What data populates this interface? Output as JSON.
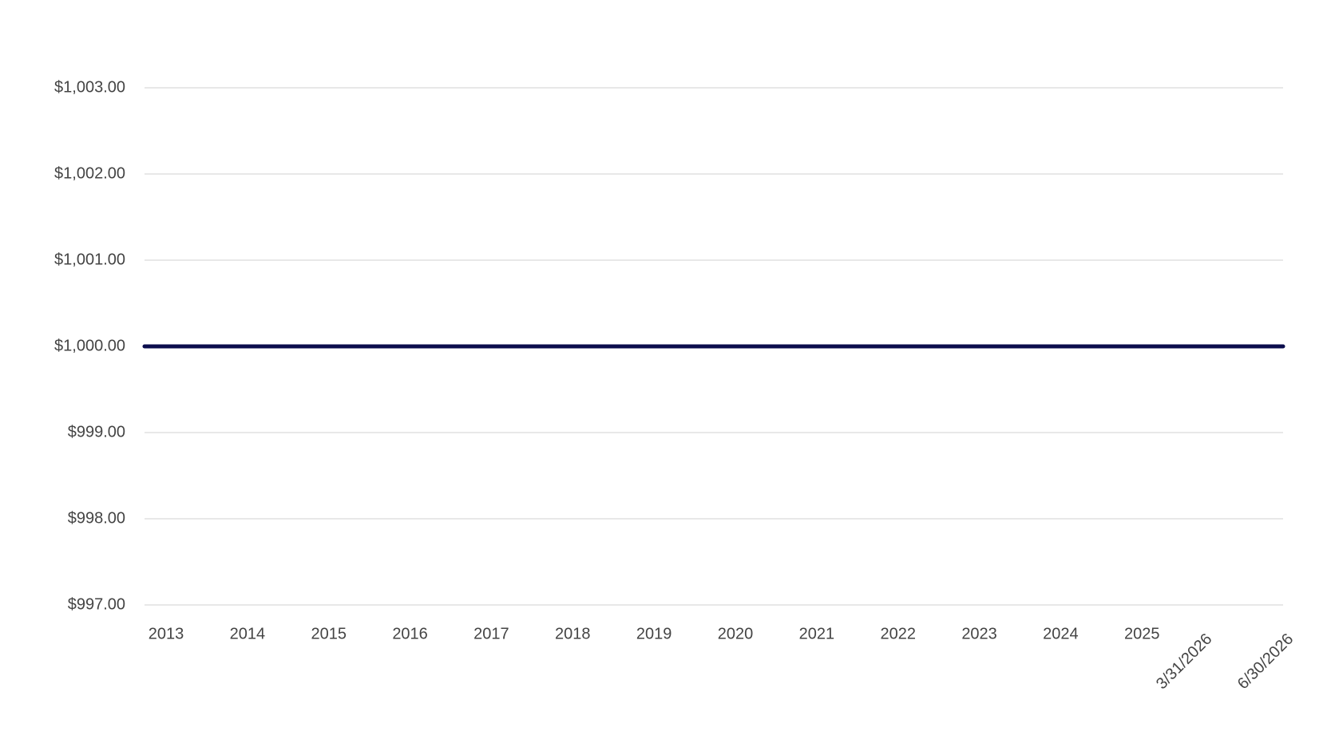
{
  "chart_data": {
    "type": "line",
    "categories": [
      "2013",
      "2014",
      "2015",
      "2016",
      "2017",
      "2018",
      "2019",
      "2020",
      "2021",
      "2022",
      "2023",
      "2024",
      "2025",
      "3/31/2026",
      "6/30/2026"
    ],
    "values": [
      1000,
      1000,
      1000,
      1000,
      1000,
      1000,
      1000,
      1000,
      1000,
      1000,
      1000,
      1000,
      1000,
      1000,
      1000
    ],
    "color": "#0b0d4d",
    "ylim": [
      997,
      1003
    ],
    "yticks": [
      {
        "value": 997,
        "label": "$997.00"
      },
      {
        "value": 998,
        "label": "$998.00"
      },
      {
        "value": 999,
        "label": "$999.00"
      },
      {
        "value": 1000,
        "label": "$1,000.00"
      },
      {
        "value": 1001,
        "label": "$1,001.00"
      },
      {
        "value": 1002,
        "label": "$1,002.00"
      },
      {
        "value": 1003,
        "label": "$1,003.00"
      }
    ],
    "grid": true
  }
}
